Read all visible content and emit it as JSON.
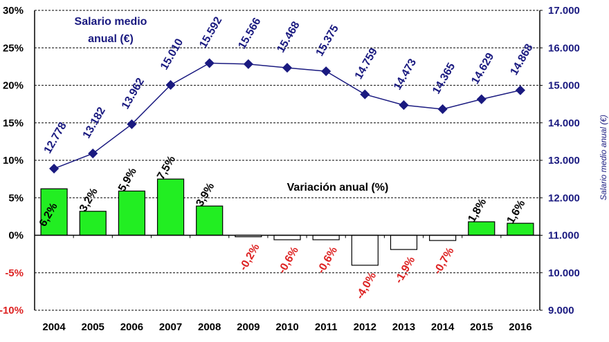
{
  "chart_data": {
    "type": "bar+line",
    "categories": [
      "2004",
      "2005",
      "2006",
      "2007",
      "2008",
      "2009",
      "2010",
      "2011",
      "2012",
      "2013",
      "2014",
      "2015",
      "2016"
    ],
    "series": [
      {
        "name": "Variación anual (%)",
        "type": "bar",
        "axis": "left",
        "values": [
          6.2,
          3.2,
          5.9,
          7.5,
          3.9,
          -0.2,
          -0.6,
          -0.6,
          -4.0,
          -1.9,
          -0.7,
          1.8,
          1.6
        ],
        "labels": [
          "6,2%",
          "3,2%",
          "5,9%",
          "7,5%",
          "3,9%",
          "-0,2%",
          "-0,6%",
          "-0,6%",
          "-4,0%",
          "-1,9%",
          "-0,7%",
          "1,8%",
          "1,6%"
        ],
        "positive_color": "#22ee22",
        "negative_color": "#ffffff",
        "negative_label_color": "#dd2222"
      },
      {
        "name": "Salario medio anual (€)",
        "type": "line",
        "axis": "right",
        "values": [
          12778,
          13182,
          13962,
          15010,
          15592,
          15566,
          15468,
          15375,
          14759,
          14473,
          14365,
          14629,
          14868
        ],
        "labels": [
          "12.778",
          "13.182",
          "13.962",
          "15.010",
          "15.592",
          "15.566",
          "15.468",
          "15.375",
          "14.759",
          "14.473",
          "14.365",
          "14.629",
          "14.868"
        ],
        "color": "#1a1a80"
      }
    ],
    "title_line": [
      "Salario medio",
      "anual (€)"
    ],
    "title_bar": "Variación anual (%)",
    "ylabel_left": "",
    "ylabel_right": "Salario medio anual (€)",
    "ylim_left": [
      -10,
      30
    ],
    "ylim_right": [
      9000,
      17000
    ],
    "yticks_left": [
      "30%",
      "25%",
      "20%",
      "15%",
      "10%",
      "5%",
      "0%",
      "-5%",
      "-10%"
    ],
    "yticks_left_values": [
      30,
      25,
      20,
      15,
      10,
      5,
      0,
      -5,
      -10
    ],
    "yticks_right": [
      "17.000",
      "16.000",
      "15.000",
      "14.000",
      "13.000",
      "12.000",
      "11.000",
      "10.000",
      "9.000"
    ],
    "yticks_right_values": [
      17000,
      16000,
      15000,
      14000,
      13000,
      12000,
      11000,
      10000,
      9000
    ],
    "grid": "dashed-horizontal",
    "legend": "none"
  }
}
